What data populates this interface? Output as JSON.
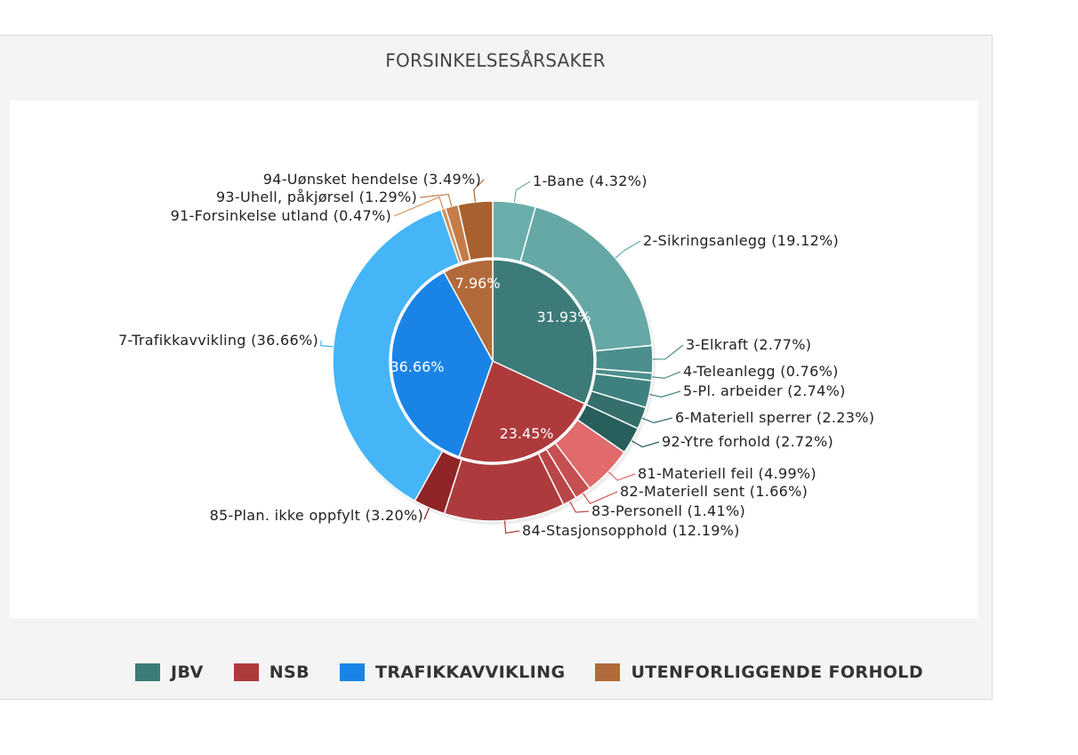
{
  "chart_data": {
    "type": "pie",
    "title": "FORSINKELSESÅRSAKER",
    "inner": [
      {
        "name": "JBV",
        "value": 31.93,
        "label": "31.93%",
        "color": "#3d7b78"
      },
      {
        "name": "NSB",
        "value": 23.45,
        "label": "23.45%",
        "color": "#ae3a3c"
      },
      {
        "name": "TRAFIKKAVVIKLING",
        "value": 36.66,
        "label": "36.66%",
        "color": "#1a84e6"
      },
      {
        "name": "UTENFORLIGGENDE FORHOLD",
        "value": 7.96,
        "label": "7.96%",
        "color": "#b26a3a"
      }
    ],
    "outer": [
      {
        "label": "1-Bane (4.32%)",
        "value": 4.32,
        "color": "#6aaeab"
      },
      {
        "label": "2-Sikringsanlegg (19.12%)",
        "value": 19.12,
        "color": "#66a8a5"
      },
      {
        "label": "3-Elkraft (2.77%)",
        "value": 2.77,
        "color": "#4c8f8c"
      },
      {
        "label": "4-Teleanlegg (0.76%)",
        "value": 0.76,
        "color": "#4b8e8b"
      },
      {
        "label": "5-Pl. arbeider (2.74%)",
        "value": 2.74,
        "color": "#3f817e"
      },
      {
        "label": "6-Materiell sperrer (2.23%)",
        "value": 2.23,
        "color": "#356f6c"
      },
      {
        "label": "92-Ytre forhold (2.72%)",
        "value": 2.72,
        "color": "#285e5b"
      },
      {
        "label": "81-Materiell feil (4.99%)",
        "value": 4.99,
        "color": "#e06a6c"
      },
      {
        "label": "82-Materiell sent (1.66%)",
        "value": 1.66,
        "color": "#c54f51"
      },
      {
        "label": "83-Personell (1.41%)",
        "value": 1.41,
        "color": "#b84547"
      },
      {
        "label": "84-Stasjonsopphold (12.19%)",
        "value": 12.19,
        "color": "#ad3b3d"
      },
      {
        "label": "85-Plan. ikke oppfylt (3.20%)",
        "value": 3.2,
        "color": "#8f2527"
      },
      {
        "label": "7-Trafikkavvikling (36.66%)",
        "value": 36.66,
        "color": "#45b5f7"
      },
      {
        "label": "91-Forsinkelse utland (0.47%)",
        "value": 0.47,
        "color": "#d4915c"
      },
      {
        "label": "93-Uhell, påkjørsel (1.29%)",
        "value": 1.29,
        "color": "#c47d48"
      },
      {
        "label": "94-Uønsket hendelse (3.49%)",
        "value": 3.49,
        "color": "#a8612e"
      }
    ]
  }
}
